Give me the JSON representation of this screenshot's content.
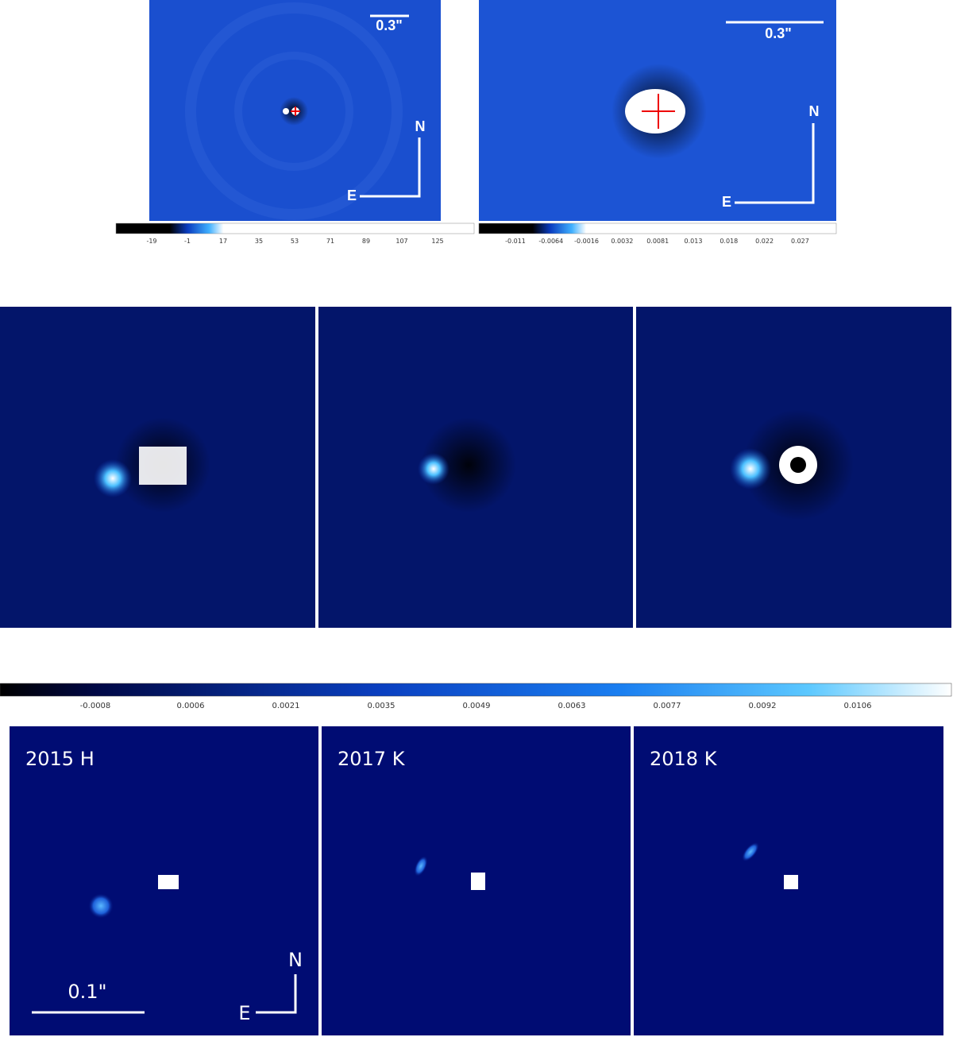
{
  "top_left": {
    "scale_label": "0.3\"",
    "north": "N",
    "east": "E"
  },
  "top_right": {
    "scale_label": "0.3\"",
    "north": "N",
    "east": "E"
  },
  "colorbars": [
    {
      "ticks": [
        "-19",
        "-1",
        "17",
        "35",
        "53",
        "71",
        "89",
        "107",
        "125"
      ]
    },
    {
      "ticks": [
        "-0.011",
        "-0.0064",
        "-0.0016",
        "0.0032",
        "0.0081",
        "0.013",
        "0.018",
        "0.022",
        "0.027"
      ]
    },
    {
      "ticks": [
        "-0.0008",
        "0.0006",
        "0.0021",
        "0.0035",
        "0.0049",
        "0.0063",
        "0.0077",
        "0.0092",
        "0.0106"
      ]
    }
  ],
  "bottom_panels": [
    {
      "label": "2015 H"
    },
    {
      "label": "2017 K"
    },
    {
      "label": "2018 K"
    }
  ],
  "bottom_scale_label": "0.1\"",
  "bottom_north": "N",
  "bottom_east": "E"
}
